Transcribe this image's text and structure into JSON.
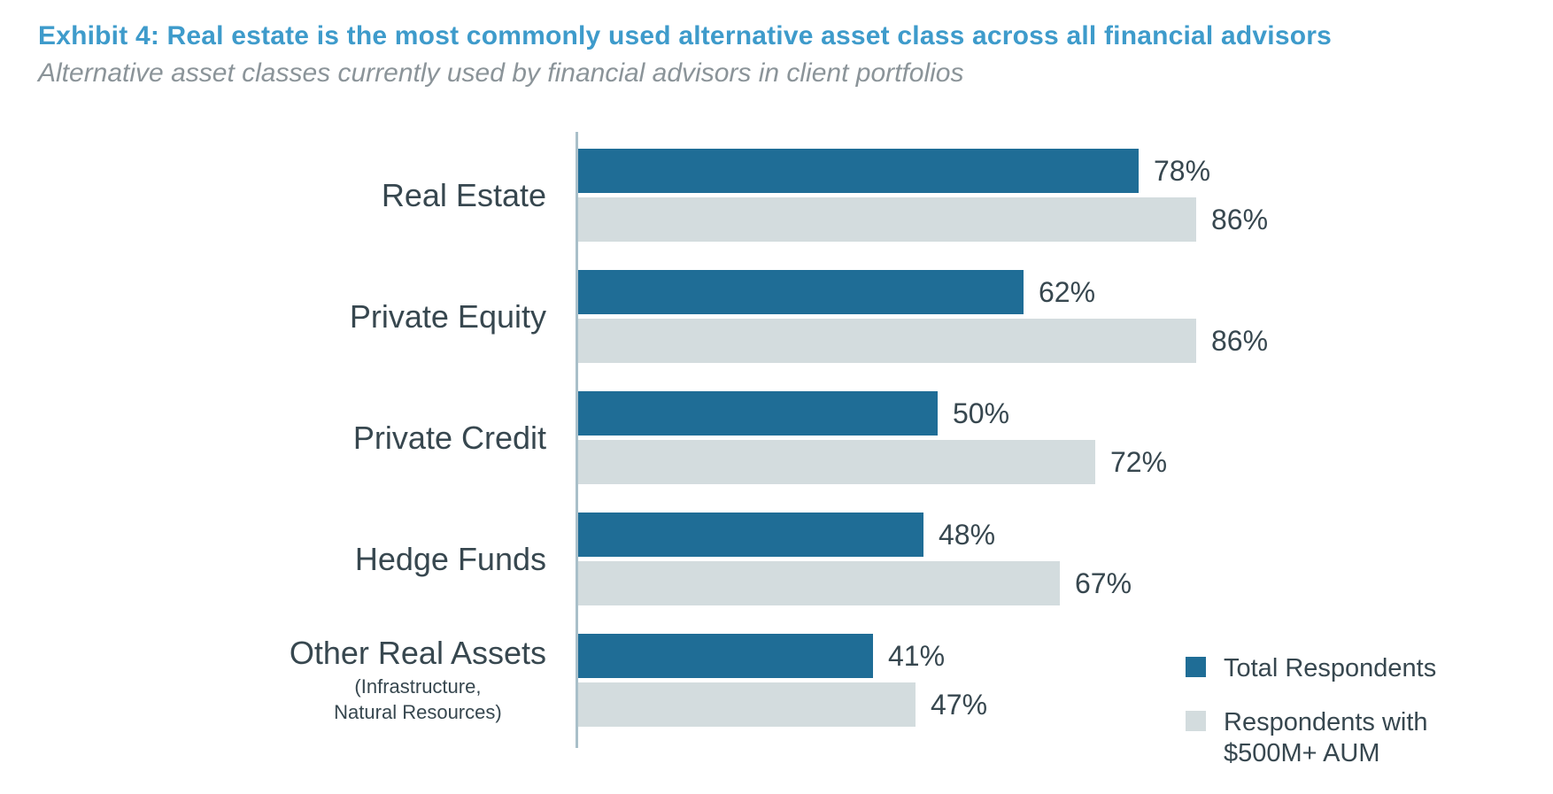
{
  "header": {
    "title": "Exhibit 4: Real estate is the most commonly used alternative asset class across all financial advisors",
    "subtitle": "Alternative asset classes currently used by financial advisors in client portfolios"
  },
  "chart_data": {
    "type": "bar",
    "orientation": "horizontal",
    "title": "Exhibit 4: Real estate is the most commonly used alternative asset class across all financial advisors",
    "subtitle": "Alternative asset classes currently used by financial advisors in client portfolios",
    "categories": [
      "Real Estate",
      "Private Equity",
      "Private Credit",
      "Hedge Funds",
      "Other Real Assets"
    ],
    "category_sublabels": [
      [],
      [],
      [],
      [],
      [
        "(Infrastructure,",
        "Natural Resources)"
      ]
    ],
    "series": [
      {
        "name": "Total Respondents",
        "color": "#1F6D96",
        "values": [
          78,
          62,
          50,
          48,
          41
        ]
      },
      {
        "name": "Respondents with $500M+ AUM",
        "color": "#D3DCDE",
        "values": [
          86,
          86,
          72,
          67,
          47
        ]
      }
    ],
    "value_suffix": "%",
    "xlabel": "",
    "ylabel": "",
    "xlim": [
      0,
      100
    ],
    "grid": false,
    "legend_position": "bottom-right"
  },
  "legend": {
    "items": [
      {
        "label_lines": [
          "Total Respondents"
        ],
        "color": "#1F6D96"
      },
      {
        "label_lines": [
          "Respondents with",
          "$500M+ AUM"
        ],
        "color": "#D3DCDE"
      }
    ]
  },
  "colors": {
    "title_blue": "#3E9BCB",
    "subtitle_gray": "#8B9499",
    "text_dark": "#37474F",
    "bar_dark": "#1F6D96",
    "bar_light": "#D3DCDE",
    "axis_line": "#A9BFC9"
  }
}
